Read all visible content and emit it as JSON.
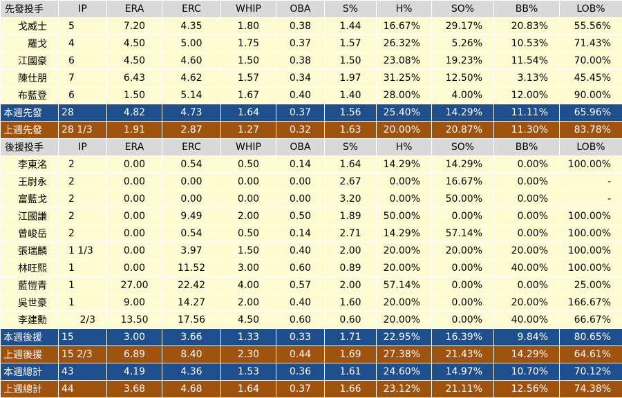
{
  "starters": {
    "headers": [
      "先發投手",
      "IP",
      "ERA",
      "ERC",
      "WHIP",
      "OBA",
      "S%",
      "H%",
      "SO%",
      "BB%",
      "LOB%"
    ],
    "rows": [
      {
        "name": "戈威士",
        "ip": "5",
        "era": "7.20",
        "erc": "4.35",
        "whip": "1.80",
        "oba": "0.38",
        "s": "1.44",
        "h": "16.67%",
        "so": "29.17%",
        "bb": "20.83%",
        "lob": "55.56%"
      },
      {
        "name": "羅戈",
        "ip": "4",
        "era": "4.50",
        "erc": "5.00",
        "whip": "1.75",
        "oba": "0.37",
        "s": "1.57",
        "h": "26.32%",
        "so": "5.26%",
        "bb": "10.53%",
        "lob": "71.43%"
      },
      {
        "name": "江國豪",
        "ip": "6",
        "era": "4.50",
        "erc": "4.60",
        "whip": "1.50",
        "oba": "0.38",
        "s": "1.50",
        "h": "23.08%",
        "so": "19.23%",
        "bb": "11.54%",
        "lob": "70.00%"
      },
      {
        "name": "陳仕朋",
        "ip": "7",
        "era": "6.43",
        "erc": "4.62",
        "whip": "1.57",
        "oba": "0.34",
        "s": "1.97",
        "h": "31.25%",
        "so": "12.50%",
        "bb": "3.13%",
        "lob": "45.45%"
      },
      {
        "name": "布藍登",
        "ip": "6",
        "era": "1.50",
        "erc": "5.14",
        "whip": "1.67",
        "oba": "0.40",
        "s": "1.40",
        "h": "28.00%",
        "so": "4.00%",
        "bb": "12.00%",
        "lob": "90.00%"
      }
    ],
    "this_week": {
      "name": "本週先發",
      "ip": "28",
      "era": "4.82",
      "erc": "4.73",
      "whip": "1.64",
      "oba": "0.37",
      "s": "1.56",
      "h": "25.40%",
      "so": "14.29%",
      "bb": "11.11%",
      "lob": "65.96%"
    },
    "last_week": {
      "name": "上週先發",
      "ip": "28 1/3",
      "era": "1.91",
      "erc": "2.87",
      "whip": "1.27",
      "oba": "0.32",
      "s": "1.63",
      "h": "20.00%",
      "so": "20.87%",
      "bb": "11.30%",
      "lob": "83.78%"
    }
  },
  "relievers": {
    "headers": [
      "後援投手",
      "IP",
      "ERA",
      "ERC",
      "WHIP",
      "OBA",
      "S%",
      "H%",
      "SO%",
      "BB%",
      "LOB%"
    ],
    "rows": [
      {
        "name": "李東洺",
        "ip": "2",
        "era": "0.00",
        "erc": "0.54",
        "whip": "0.50",
        "oba": "0.14",
        "s": "1.64",
        "h": "14.29%",
        "so": "14.29%",
        "bb": "0.00%",
        "lob": "100.00%"
      },
      {
        "name": "王尉永",
        "ip": "2",
        "era": "0.00",
        "erc": "0.00",
        "whip": "0.00",
        "oba": "0.00",
        "s": "2.67",
        "h": "0.00%",
        "so": "16.67%",
        "bb": "0.00%",
        "lob": "-"
      },
      {
        "name": "富藍戈",
        "ip": "2",
        "era": "0.00",
        "erc": "0.00",
        "whip": "0.00",
        "oba": "0.00",
        "s": "3.20",
        "h": "0.00%",
        "so": "50.00%",
        "bb": "0.00%",
        "lob": "-"
      },
      {
        "name": "江國謙",
        "ip": "2",
        "era": "0.00",
        "erc": "9.49",
        "whip": "2.00",
        "oba": "0.50",
        "s": "1.89",
        "h": "50.00%",
        "so": "0.00%",
        "bb": "0.00%",
        "lob": "100.00%"
      },
      {
        "name": "曾峻岳",
        "ip": "2",
        "era": "0.00",
        "erc": "0.54",
        "whip": "0.50",
        "oba": "0.14",
        "s": "2.71",
        "h": "14.29%",
        "so": "57.14%",
        "bb": "0.00%",
        "lob": "100.00%"
      },
      {
        "name": "張瑞麟",
        "ip": "1 1/3",
        "era": "0.00",
        "erc": "3.97",
        "whip": "1.50",
        "oba": "0.40",
        "s": "2.00",
        "h": "20.00%",
        "so": "20.00%",
        "bb": "20.00%",
        "lob": "100.00%"
      },
      {
        "name": "林旺熙",
        "ip": "1",
        "era": "0.00",
        "erc": "11.52",
        "whip": "3.00",
        "oba": "0.60",
        "s": "0.89",
        "h": "20.00%",
        "so": "0.00%",
        "bb": "40.00%",
        "lob": "100.00%"
      },
      {
        "name": "藍愷青",
        "ip": "1",
        "era": "27.00",
        "erc": "22.42",
        "whip": "4.00",
        "oba": "0.57",
        "s": "2.00",
        "h": "57.14%",
        "so": "0.00%",
        "bb": "0.00%",
        "lob": "25.00%"
      },
      {
        "name": "吳世豪",
        "ip": "1",
        "era": "9.00",
        "erc": "14.27",
        "whip": "2.00",
        "oba": "0.40",
        "s": "1.60",
        "h": "20.00%",
        "so": "0.00%",
        "bb": "20.00%",
        "lob": "166.67%"
      },
      {
        "name": "李建勳",
        "ip": "2/3",
        "era": "13.50",
        "erc": "17.56",
        "whip": "4.50",
        "oba": "0.60",
        "s": "0.60",
        "h": "20.00%",
        "so": "0.00%",
        "bb": "40.00%",
        "lob": "66.67%"
      }
    ],
    "this_week": {
      "name": "本週後援",
      "ip": "15",
      "era": "3.00",
      "erc": "3.66",
      "whip": "1.33",
      "oba": "0.33",
      "s": "1.71",
      "h": "22.95%",
      "so": "16.39%",
      "bb": "9.84%",
      "lob": "80.65%"
    },
    "last_week": {
      "name": "上週後援",
      "ip": "15 2/3",
      "era": "6.89",
      "erc": "8.40",
      "whip": "2.30",
      "oba": "0.44",
      "s": "1.69",
      "h": "27.38%",
      "so": "21.43%",
      "bb": "14.29%",
      "lob": "64.61%"
    }
  },
  "totals": {
    "this_week": {
      "name": "本週總計",
      "ip": "43",
      "era": "4.19",
      "erc": "4.36",
      "whip": "1.53",
      "oba": "0.36",
      "s": "1.61",
      "h": "24.60%",
      "so": "14.97%",
      "bb": "10.70%",
      "lob": "70.12%"
    },
    "last_week": {
      "name": "上週總計",
      "ip": "44",
      "era": "3.68",
      "erc": "4.68",
      "whip": "1.64",
      "oba": "0.37",
      "s": "1.66",
      "h": "23.12%",
      "so": "21.11%",
      "bb": "12.56%",
      "lob": "74.38%"
    }
  },
  "colors": {
    "header_bg": "#d9d9d9",
    "player_bg": "#fffbd3",
    "this_week_bg": "#1f4e8c",
    "last_week_bg": "#a0520f"
  }
}
